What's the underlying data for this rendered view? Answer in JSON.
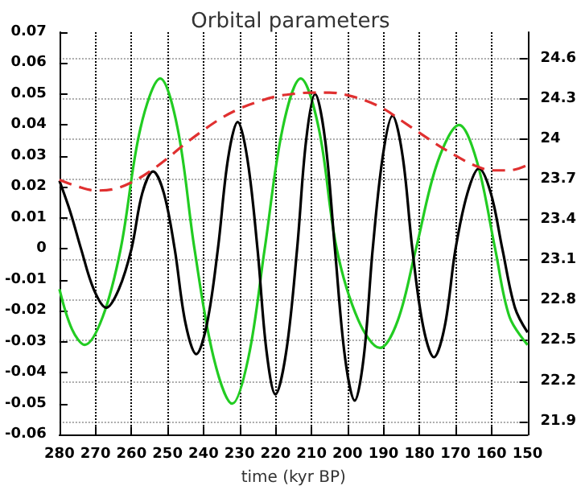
{
  "chart_data": {
    "type": "line",
    "title": "Orbital parameters",
    "xlabel": "time (kyr BP)",
    "xlim": [
      280,
      150
    ],
    "xticks": [
      280,
      270,
      260,
      250,
      240,
      230,
      220,
      210,
      200,
      190,
      180,
      170,
      160,
      150
    ],
    "ylim": [
      -0.06,
      0.07
    ],
    "yticks": [
      -0.06,
      -0.05,
      -0.04,
      -0.03,
      -0.02,
      -0.01,
      0,
      0.01,
      0.02,
      0.03,
      0.04,
      0.05,
      0.06,
      0.07
    ],
    "y2lim": [
      21.8,
      24.8
    ],
    "y2ticks": [
      21.9,
      22.2,
      22.5,
      22.8,
      23.1,
      23.4,
      23.7,
      24,
      24.3,
      24.6
    ],
    "grid": true,
    "marker": "none",
    "series": [
      {
        "color": "#22cc22",
        "line_style": "solid",
        "x": [
          280,
          276.5,
          273,
          268,
          263,
          257.5,
          252,
          247.2,
          242.5,
          237.2,
          232,
          227.5,
          223,
          218,
          213,
          208,
          203,
          197,
          191,
          186,
          181,
          175,
          169,
          164,
          159,
          155,
          150
        ],
        "values": [
          -0.013,
          -0.026,
          -0.031,
          -0.022,
          0,
          0.039,
          0.055,
          0.039,
          0,
          -0.035,
          -0.05,
          -0.035,
          0,
          0.039,
          0.055,
          0.039,
          0,
          -0.023,
          -0.032,
          -0.023,
          0,
          0.028,
          0.04,
          0.028,
          0,
          -0.022,
          -0.031
        ]
      },
      {
        "color": "#000000",
        "line_style": "solid",
        "x": [
          280,
          277,
          274,
          270.5,
          267,
          263.5,
          260,
          257,
          254,
          251,
          248,
          245,
          242,
          239,
          236,
          233.2,
          230.5,
          227.8,
          225,
          222.5,
          220,
          217,
          214,
          211.5,
          209,
          206.2,
          203.5,
          200.7,
          198,
          195.5,
          193,
          190.2,
          187.5,
          184.7,
          182,
          179,
          176,
          173,
          170,
          166.7,
          163.5,
          160.2,
          157,
          153.5,
          150
        ],
        "values": [
          0.022,
          0.012,
          0,
          -0.013,
          -0.019,
          -0.013,
          0,
          0.018,
          0.025,
          0.018,
          0,
          -0.024,
          -0.034,
          -0.024,
          0,
          0.029,
          0.041,
          0.029,
          0,
          -0.033,
          -0.047,
          -0.033,
          0,
          0.035,
          0.05,
          0.035,
          0,
          -0.035,
          -0.049,
          -0.035,
          0,
          0.03,
          0.043,
          0.03,
          0,
          -0.025,
          -0.035,
          -0.025,
          0,
          0.018,
          0.026,
          0.018,
          0,
          -0.019,
          -0.027
        ]
      },
      {
        "color": "#e03030",
        "line_style": "dashed",
        "axis": "y2",
        "x": [
          280,
          275,
          270,
          265,
          260,
          255,
          250,
          245,
          240,
          235,
          230,
          225,
          220,
          215,
          210,
          205,
          200,
          195,
          190,
          185,
          180,
          175,
          170,
          165,
          160,
          155,
          150
        ],
        "values": [
          23.7,
          23.65,
          23.62,
          23.63,
          23.68,
          23.76,
          23.86,
          23.97,
          24.07,
          24.16,
          24.23,
          24.28,
          24.32,
          24.34,
          24.35,
          24.35,
          24.33,
          24.29,
          24.23,
          24.14,
          24.05,
          23.96,
          23.88,
          23.81,
          23.77,
          23.77,
          23.81
        ]
      }
    ]
  }
}
